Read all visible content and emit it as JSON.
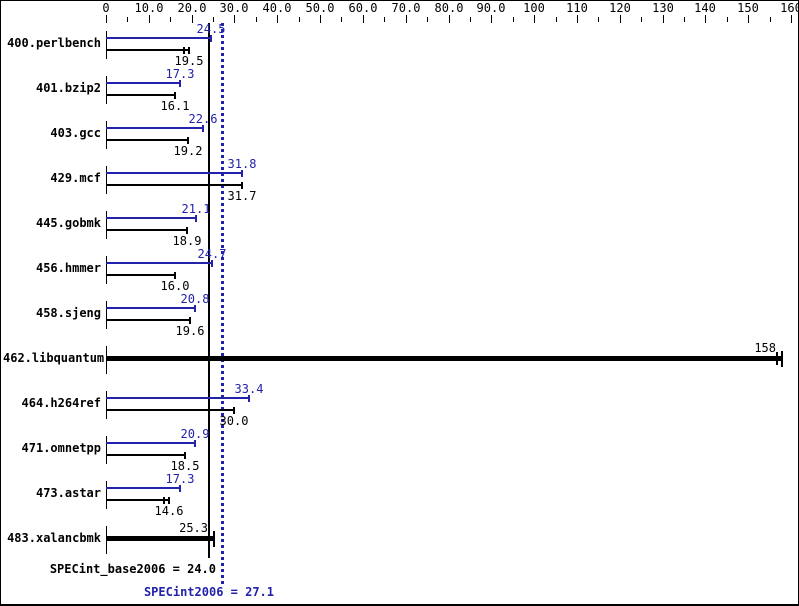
{
  "colors": {
    "peak_blue": "#2222aa",
    "base_black": "#000000",
    "background": "#ffffff"
  },
  "axis": {
    "min": 0,
    "max": 160,
    "major_step": 10,
    "minor_step": 5,
    "tick_labels": [
      "0",
      "10.0",
      "20.0",
      "30.0",
      "40.0",
      "50.0",
      "60.0",
      "70.0",
      "80.0",
      "90.0",
      "100",
      "110",
      "120",
      "130",
      "140",
      "150",
      "160"
    ]
  },
  "reference_lines": [
    {
      "name": "SPECint_base2006",
      "value": 24.0,
      "style": "solid",
      "color": "#000000",
      "label": "SPECint_base2006 = 24.0"
    },
    {
      "name": "SPECint2006",
      "value": 27.1,
      "style": "dotted",
      "color": "#2222aa",
      "label": "SPECint2006 = 27.1"
    }
  ],
  "chart_data": {
    "type": "bar",
    "orientation": "horizontal",
    "xlim": [
      0,
      160
    ],
    "grid": false,
    "legend": "none",
    "series": [
      {
        "name": "peak (blue bar)"
      },
      {
        "name": "base (black bar)"
      }
    ],
    "categories": [
      "400.perlbench",
      "401.bzip2",
      "403.gcc",
      "429.mcf",
      "445.gobmk",
      "456.hmmer",
      "458.sjeng",
      "462.libquantum",
      "464.h264ref",
      "471.omnetpp",
      "473.astar",
      "483.xalancbmk"
    ],
    "benchmarks": [
      {
        "name": "400.perlbench",
        "single": false,
        "peak": 24.5,
        "peak_label": "24.5",
        "base": 19.5,
        "base_label": "19.5",
        "base_spread": true
      },
      {
        "name": "401.bzip2",
        "single": false,
        "peak": 17.3,
        "peak_label": "17.3",
        "base": 16.1,
        "base_label": "16.1",
        "base_spread": false
      },
      {
        "name": "403.gcc",
        "single": false,
        "peak": 22.6,
        "peak_label": "22.6",
        "base": 19.2,
        "base_label": "19.2",
        "base_spread": false
      },
      {
        "name": "429.mcf",
        "single": false,
        "peak": 31.8,
        "peak_label": "31.8",
        "base": 31.7,
        "base_label": "31.7",
        "base_spread": false
      },
      {
        "name": "445.gobmk",
        "single": false,
        "peak": 21.1,
        "peak_label": "21.1",
        "base": 18.9,
        "base_label": "18.9",
        "base_spread": false
      },
      {
        "name": "456.hmmer",
        "single": false,
        "peak": 24.7,
        "peak_label": "24.7",
        "base": 16.0,
        "base_label": "16.0",
        "base_spread": false
      },
      {
        "name": "458.sjeng",
        "single": false,
        "peak": 20.8,
        "peak_label": "20.8",
        "base": 19.6,
        "base_label": "19.6",
        "base_spread": false
      },
      {
        "name": "462.libquantum",
        "single": true,
        "value": 158,
        "value_label": "158",
        "spread": true
      },
      {
        "name": "464.h264ref",
        "single": false,
        "peak": 33.4,
        "peak_label": "33.4",
        "base": 30.0,
        "base_label": "30.0",
        "base_spread": false
      },
      {
        "name": "471.omnetpp",
        "single": false,
        "peak": 20.9,
        "peak_label": "20.9",
        "base": 18.5,
        "base_label": "18.5",
        "base_spread": false
      },
      {
        "name": "473.astar",
        "single": false,
        "peak": 17.3,
        "peak_label": "17.3",
        "base": 14.6,
        "base_label": "14.6",
        "base_spread": true
      },
      {
        "name": "483.xalancbmk",
        "single": true,
        "value": 25.3,
        "value_label": "25.3",
        "spread": false
      }
    ],
    "means": {
      "SPECint_base2006": 24.0,
      "SPECint2006": 27.1
    }
  }
}
